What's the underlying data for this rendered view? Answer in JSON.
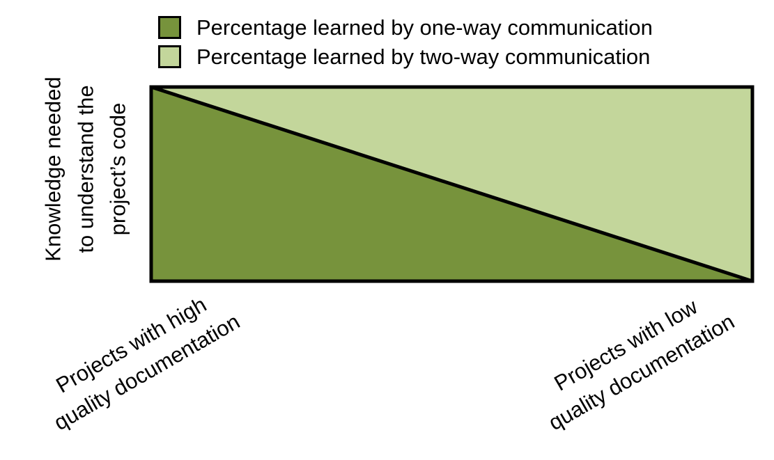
{
  "legend": {
    "items": [
      {
        "label": "Percentage learned by one-way communication",
        "color": "#77933C"
      },
      {
        "label": "Percentage learned by two-way communication",
        "color": "#C3D69B"
      }
    ]
  },
  "y_axis": {
    "lines": [
      "Knowledge needed",
      "to understand the",
      "project’s code"
    ]
  },
  "x_axis": {
    "left": {
      "lines": [
        "Projects with high",
        "quality documentation"
      ]
    },
    "right": {
      "lines": [
        "Projects with low",
        "quality documentation"
      ]
    }
  },
  "colors": {
    "one_way": "#77933C",
    "two_way": "#C3D69B",
    "outline": "#000000"
  }
}
